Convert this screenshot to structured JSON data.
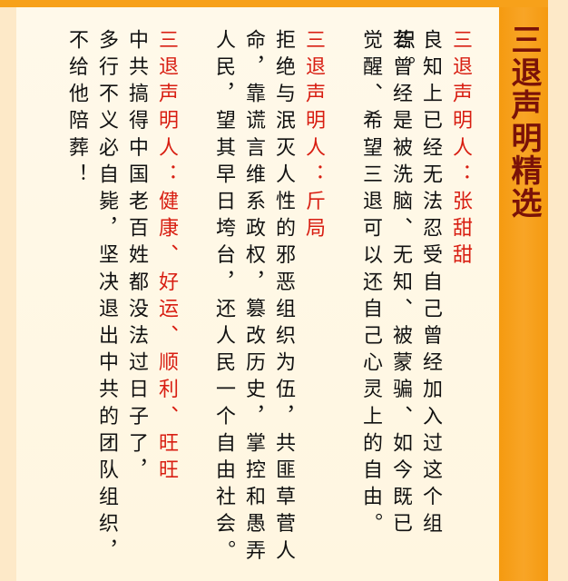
{
  "panel": {
    "title": "三退声明精选"
  },
  "declarations": [
    {
      "label": "三退声明人：",
      "name": "张甜甜",
      "body_line1": "良知上已经无法忍受自己曾经加入过这个组织。",
      "body_line2": "若曾经是被洗脑、无知、被蒙骗、如今既已",
      "body_line3": "觉醒、希望三退可以还自己心灵上的自由。"
    },
    {
      "label": "三退声明人：",
      "name": "斤局",
      "body_line1": "拒绝与泯灭人性的邪恶组织为伍，共匪草菅人",
      "body_line2": "命，靠谎言维系政权，篡改历史，掌控和愚弄",
      "body_line3": "人民，望其早日垮台，还人民一个自由社会。"
    },
    {
      "label": "三退声明人：",
      "name": "健康、好运、顺利、旺旺",
      "body_line1": "中共搞得中国老百姓都没法过日子了，",
      "body_line2": "多行不义必自毙，坚决退出中共的团队组织，",
      "body_line3": "不给他陪葬！"
    }
  ],
  "colors": {
    "accent": "#f7a11a",
    "label_red": "#d81e12",
    "title_dark_red": "#7a1208",
    "text": "#111111",
    "paper": "#fff8e6"
  }
}
